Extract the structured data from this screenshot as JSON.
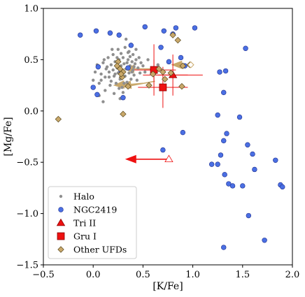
{
  "chart_data": {
    "type": "scatter",
    "xlabel": "[K/Fe]",
    "ylabel": "[Mg/Fe]",
    "xlim": [
      -0.5,
      2.0
    ],
    "ylim": [
      -1.5,
      1.0
    ],
    "xticks": [
      "−0.5",
      "0.0",
      "0.5",
      "1.0",
      "1.5",
      "2.0"
    ],
    "xtick_values": [
      -0.5,
      0.0,
      0.5,
      1.0,
      1.5,
      2.0
    ],
    "yticks": [
      "−1.5",
      "−1.0",
      "−0.5",
      "0.0",
      "0.5",
      "1.0"
    ],
    "ytick_values": [
      -1.5,
      -1.0,
      -0.5,
      0.0,
      0.5,
      1.0
    ],
    "grid": false,
    "legend_position": "lower-left",
    "colors": {
      "halo": "#8f8f8f",
      "ngc2419_fill": "#4a6fe3",
      "ngc2419_edge": "#1f2f8f",
      "red": "#ee1111",
      "ufd_fill": "#c9a86a",
      "ufd_edge": "#5a4a20"
    },
    "series": [
      {
        "name": "Halo",
        "marker": "small-dot",
        "points": [
          [
            0.02,
            0.38
          ],
          [
            0.05,
            0.42
          ],
          [
            0.08,
            0.36
          ],
          [
            0.1,
            0.47
          ],
          [
            0.12,
            0.33
          ],
          [
            0.14,
            0.43
          ],
          [
            0.15,
            0.52
          ],
          [
            0.16,
            0.38
          ],
          [
            0.18,
            0.29
          ],
          [
            0.18,
            0.45
          ],
          [
            0.2,
            0.4
          ],
          [
            0.2,
            0.55
          ],
          [
            0.21,
            0.34
          ],
          [
            0.22,
            0.48
          ],
          [
            0.23,
            0.27
          ],
          [
            0.24,
            0.42
          ],
          [
            0.25,
            0.6
          ],
          [
            0.25,
            0.37
          ],
          [
            0.26,
            0.5
          ],
          [
            0.27,
            0.31
          ],
          [
            0.28,
            0.44
          ],
          [
            0.28,
            0.56
          ],
          [
            0.29,
            0.23
          ],
          [
            0.3,
            0.39
          ],
          [
            0.3,
            0.52
          ],
          [
            0.31,
            0.46
          ],
          [
            0.32,
            0.34
          ],
          [
            0.32,
            0.62
          ],
          [
            0.33,
            0.41
          ],
          [
            0.34,
            0.28
          ],
          [
            0.35,
            0.5
          ],
          [
            0.35,
            0.57
          ],
          [
            0.36,
            0.37
          ],
          [
            0.37,
            0.44
          ],
          [
            0.38,
            0.31
          ],
          [
            0.38,
            0.65
          ],
          [
            0.39,
            0.48
          ],
          [
            0.4,
            0.4
          ],
          [
            0.4,
            0.55
          ],
          [
            0.41,
            0.35
          ],
          [
            0.42,
            0.46
          ],
          [
            0.43,
            0.6
          ],
          [
            0.44,
            0.3
          ],
          [
            0.45,
            0.42
          ],
          [
            0.46,
            0.52
          ],
          [
            0.47,
            0.37
          ],
          [
            0.48,
            0.47
          ],
          [
            0.5,
            0.44
          ],
          [
            0.52,
            0.38
          ],
          [
            0.55,
            0.5
          ],
          [
            0.6,
            0.42
          ],
          [
            0.65,
            0.45
          ],
          [
            0.0,
            0.3
          ],
          [
            0.06,
            0.27
          ],
          [
            0.12,
            0.2
          ],
          [
            0.17,
            0.25
          ],
          [
            0.21,
            0.17
          ],
          [
            0.26,
            0.22
          ],
          [
            0.06,
            0.15
          ],
          [
            0.1,
            0.09
          ],
          [
            0.16,
            0.33
          ],
          [
            0.27,
            0.12
          ],
          [
            0.3,
            0.18
          ],
          [
            0.33,
            0.7
          ],
          [
            0.36,
            0.58
          ],
          [
            0.11,
            0.5
          ],
          [
            0.04,
            0.45
          ],
          [
            0.19,
            0.6
          ],
          [
            0.24,
            0.52
          ],
          [
            0.29,
            0.33
          ],
          [
            0.34,
            0.47
          ],
          [
            0.39,
            0.38
          ],
          [
            0.43,
            0.5
          ],
          [
            0.08,
            0.3
          ],
          [
            0.13,
            0.41
          ],
          [
            0.22,
            0.36
          ],
          [
            0.26,
            0.42
          ],
          [
            0.31,
            0.27
          ],
          [
            0.37,
            0.53
          ],
          [
            0.41,
            0.43
          ]
        ]
      },
      {
        "name": "NGC2419",
        "marker": "circle",
        "points": [
          [
            -0.13,
            0.74
          ],
          [
            0.03,
            0.78
          ],
          [
            0.0,
            0.23
          ],
          [
            0.04,
            0.16
          ],
          [
            0.05,
            0.43
          ],
          [
            0.17,
            0.76
          ],
          [
            0.26,
            0.74
          ],
          [
            0.28,
            0.39
          ],
          [
            0.3,
            0.13
          ],
          [
            0.35,
            0.42
          ],
          [
            0.38,
            0.64
          ],
          [
            0.52,
            0.82
          ],
          [
            0.68,
            0.62
          ],
          [
            0.71,
            0.78
          ],
          [
            0.76,
            0.48
          ],
          [
            0.8,
            0.75
          ],
          [
            0.83,
            0.81
          ],
          [
            0.88,
            0.52
          ],
          [
            0.92,
            0.44
          ],
          [
            0.7,
            -0.38
          ],
          [
            0.9,
            -0.21
          ],
          [
            1.02,
            0.81
          ],
          [
            1.27,
            0.38
          ],
          [
            1.31,
            0.18
          ],
          [
            1.33,
            0.39
          ],
          [
            1.25,
            -0.04
          ],
          [
            1.34,
            -0.22
          ],
          [
            1.31,
            -0.29
          ],
          [
            1.28,
            -0.43
          ],
          [
            1.19,
            -0.52
          ],
          [
            1.25,
            -0.52
          ],
          [
            1.32,
            -0.62
          ],
          [
            1.36,
            -0.71
          ],
          [
            1.4,
            -0.73
          ],
          [
            1.47,
            -0.06
          ],
          [
            1.53,
            0.61
          ],
          [
            1.55,
            -0.33
          ],
          [
            1.6,
            -0.42
          ],
          [
            1.62,
            -0.57
          ],
          [
            1.5,
            -0.73
          ],
          [
            1.56,
            -1.02
          ],
          [
            1.72,
            -1.26
          ],
          [
            1.83,
            -0.48
          ],
          [
            1.88,
            -0.72
          ],
          [
            1.9,
            -0.74
          ],
          [
            1.31,
            -1.33
          ]
        ]
      },
      {
        "name": "Tri II",
        "marker": "triangle",
        "points": [
          [
            0.8,
            0.35
          ],
          [
            0.76,
            -0.47
          ]
        ]
      },
      {
        "name": "Gru I",
        "marker": "square",
        "points": [
          [
            0.61,
            0.4
          ],
          [
            0.7,
            0.23
          ]
        ]
      },
      {
        "name": "Other UFDs",
        "marker": "diamond",
        "points": [
          [
            -0.35,
            -0.08
          ],
          [
            0.25,
            0.48
          ],
          [
            0.27,
            0.41
          ],
          [
            0.29,
            0.33
          ],
          [
            0.3,
            0.38
          ],
          [
            0.3,
            -0.03
          ],
          [
            0.35,
            0.24
          ],
          [
            0.6,
            0.36
          ],
          [
            0.66,
            0.41
          ],
          [
            0.7,
            0.38
          ],
          [
            0.72,
            0.31
          ],
          [
            0.78,
            0.37
          ],
          [
            0.8,
            0.74
          ],
          [
            0.85,
            0.69
          ],
          [
            0.89,
            0.24
          ],
          [
            0.9,
            0.44
          ],
          [
            0.97,
            0.45
          ],
          [
            0.56,
            0.25
          ],
          [
            0.24,
            0.44
          ],
          [
            0.28,
            0.36
          ]
        ]
      }
    ],
    "error_bars": [
      {
        "series": "Tri II",
        "x": 0.8,
        "y": 0.35,
        "xerr": 0.15,
        "yerr": 0.2
      },
      {
        "series": "Tri II",
        "x": 0.8,
        "y": 0.35,
        "xerr": 0.3,
        "yerr": 0.0
      },
      {
        "series": "Gru I",
        "x": 0.61,
        "y": 0.4,
        "xerr": 0.22,
        "yerr": 0.1
      },
      {
        "series": "Gru I",
        "x": 0.7,
        "y": 0.23,
        "xerr": 0.25,
        "yerr": 0.2
      },
      {
        "series": "Gru I",
        "x": 0.61,
        "y": 0.4,
        "xerr": 0.1,
        "yerr": 0.25
      }
    ],
    "limit_arrows": [
      {
        "series": "Tri II",
        "from": [
          0.76,
          -0.47
        ],
        "to": [
          0.32,
          -0.47
        ],
        "color": "red"
      },
      {
        "series": "Other UFDs",
        "from": [
          0.62,
          0.41
        ],
        "to": [
          0.3,
          0.41
        ],
        "color": "ufd"
      },
      {
        "series": "Other UFDs",
        "from": [
          0.62,
          0.29
        ],
        "to": [
          0.27,
          0.24
        ],
        "color": "ufd"
      },
      {
        "series": "Other UFDs",
        "from": [
          0.98,
          0.45
        ],
        "to": [
          0.78,
          0.45
        ],
        "color": "ufd"
      },
      {
        "series": "Other UFDs",
        "from": [
          0.5,
          0.27
        ],
        "to": [
          0.2,
          0.25
        ],
        "color": "ufd"
      }
    ],
    "legend": [
      {
        "label": "Halo",
        "marker": "small-dot"
      },
      {
        "label": "NGC2419",
        "marker": "circle"
      },
      {
        "label": "Tri II",
        "marker": "triangle"
      },
      {
        "label": "Gru I",
        "marker": "square"
      },
      {
        "label": "Other UFDs",
        "marker": "diamond"
      }
    ]
  }
}
